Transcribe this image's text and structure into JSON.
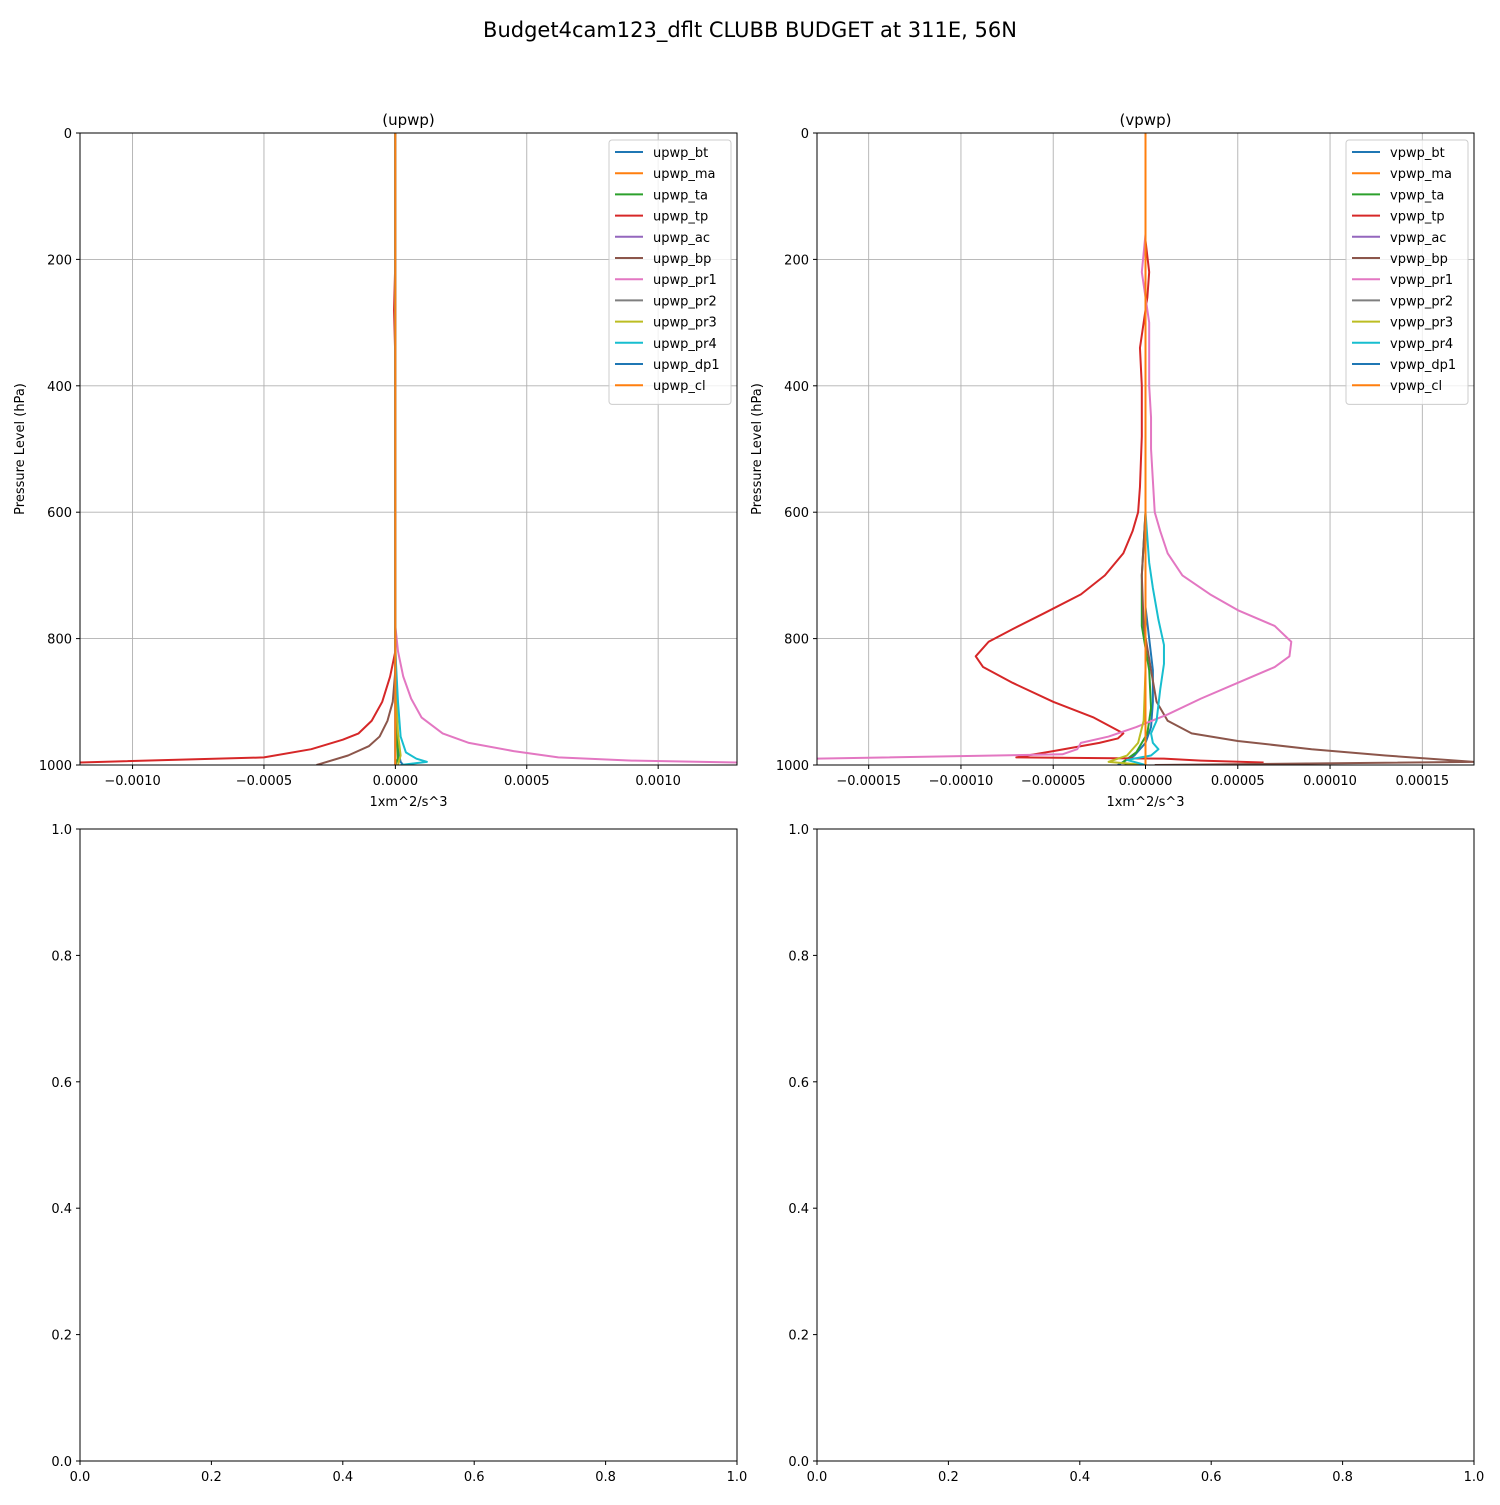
{
  "figure": {
    "title": "Budget4cam123_dflt CLUBB BUDGET at 311E, 56N"
  },
  "colors": {
    "c0": "#1f77b4",
    "c1": "#ff7f0e",
    "c2": "#2ca02c",
    "c3": "#d62728",
    "c4": "#9467bd",
    "c5": "#8c564b",
    "c6": "#e377c2",
    "c7": "#7f7f7f",
    "c8": "#bcbd22",
    "c9": "#17becf",
    "grid": "#b0b0b0"
  },
  "chart_data": [
    {
      "type": "line",
      "title": "(upwp)",
      "xlabel": "1xm^2/s^3",
      "ylabel": "Pressure Level (hPa)",
      "xlim": [
        -0.0012,
        0.0013
      ],
      "ylim": [
        0,
        1000
      ],
      "y_inverted": true,
      "grid": true,
      "legend": "upper right",
      "x_ticks": [
        -0.001,
        -0.0005,
        0.0,
        0.0005,
        0.001
      ],
      "x_tick_labels": [
        "−0.0010",
        "−0.0005",
        "0.0000",
        "0.0005",
        "0.0010"
      ],
      "y_ticks": [
        0,
        200,
        400,
        600,
        800,
        1000
      ],
      "y_tick_labels": [
        "0",
        "200",
        "400",
        "600",
        "800",
        "1000"
      ],
      "series": [
        {
          "name": "upwp_bt",
          "color": "#1f77b4",
          "points": [
            [
              0,
              0
            ],
            [
              0,
              600
            ],
            [
              0,
              800
            ],
            [
              0,
              900
            ],
            [
              5e-06,
              950
            ],
            [
              1e-05,
              975
            ],
            [
              2e-05,
              995
            ],
            [
              3e-05,
              1000
            ]
          ]
        },
        {
          "name": "upwp_ma",
          "color": "#ff7f0e",
          "points": [
            [
              0,
              0
            ],
            [
              0,
              1000
            ]
          ]
        },
        {
          "name": "upwp_ta",
          "color": "#2ca02c",
          "points": [
            [
              0,
              0
            ],
            [
              0,
              800
            ],
            [
              5e-06,
              930
            ],
            [
              1e-05,
              990
            ],
            [
              0,
              1000
            ]
          ]
        },
        {
          "name": "upwp_tp",
          "color": "#d62728",
          "points": [
            [
              0,
              0
            ],
            [
              0,
              200
            ],
            [
              -5e-06,
              280
            ],
            [
              0,
              360
            ],
            [
              0,
              820
            ],
            [
              -2e-05,
              860
            ],
            [
              -5e-05,
              900
            ],
            [
              -9e-05,
              930
            ],
            [
              -0.00014,
              950
            ],
            [
              -0.0002,
              960
            ],
            [
              -0.00032,
              975
            ],
            [
              -0.0005,
              988
            ],
            [
              -0.0012,
              996
            ]
          ]
        },
        {
          "name": "upwp_ac",
          "color": "#9467bd",
          "points": [
            [
              0,
              0
            ],
            [
              0,
              1000
            ]
          ]
        },
        {
          "name": "upwp_bp",
          "color": "#8c564b",
          "points": [
            [
              0,
              0
            ],
            [
              0,
              850
            ],
            [
              -1e-05,
              900
            ],
            [
              -3e-05,
              930
            ],
            [
              -6e-05,
              955
            ],
            [
              -0.0001,
              970
            ],
            [
              -0.00018,
              985
            ],
            [
              -0.0003,
              1000
            ]
          ]
        },
        {
          "name": "upwp_pr1",
          "color": "#e377c2",
          "points": [
            [
              0,
              0
            ],
            [
              0,
              780
            ],
            [
              1e-05,
              820
            ],
            [
              3e-05,
              860
            ],
            [
              6e-05,
              895
            ],
            [
              0.0001,
              925
            ],
            [
              0.00018,
              950
            ],
            [
              0.00028,
              965
            ],
            [
              0.00045,
              978
            ],
            [
              0.00062,
              988
            ],
            [
              0.0009,
              993
            ],
            [
              0.0013,
              996
            ]
          ]
        },
        {
          "name": "upwp_pr2",
          "color": "#7f7f7f",
          "points": [
            [
              0,
              0
            ],
            [
              0,
              1000
            ]
          ]
        },
        {
          "name": "upwp_pr3",
          "color": "#bcbd22",
          "points": [
            [
              0,
              0
            ],
            [
              0,
              850
            ],
            [
              1e-05,
              950
            ],
            [
              2e-05,
              985
            ],
            [
              1e-05,
              1000
            ]
          ]
        },
        {
          "name": "upwp_pr4",
          "color": "#17becf",
          "points": [
            [
              0,
              0
            ],
            [
              0,
              820
            ],
            [
              1e-05,
              900
            ],
            [
              2e-05,
              955
            ],
            [
              4e-05,
              980
            ],
            [
              8e-05,
              990
            ],
            [
              0.00012,
              995
            ],
            [
              2e-05,
              1000
            ]
          ]
        },
        {
          "name": "upwp_dp1",
          "color": "#1f77b4",
          "points": [
            [
              0,
              0
            ],
            [
              0,
              1000
            ]
          ]
        },
        {
          "name": "upwp_cl",
          "color": "#ff7f0e",
          "points": [
            [
              0,
              0
            ],
            [
              0,
              1000
            ]
          ]
        }
      ]
    },
    {
      "type": "line",
      "title": "(vpwp)",
      "xlabel": "1xm^2/s^3",
      "ylabel": "Pressure Level (hPa)",
      "xlim": [
        -0.000178,
        0.000178
      ],
      "ylim": [
        0,
        1000
      ],
      "y_inverted": true,
      "grid": true,
      "legend": "upper right",
      "x_ticks": [
        -0.00015,
        -0.0001,
        -5e-05,
        0.0,
        5e-05,
        0.0001,
        0.00015
      ],
      "x_tick_labels": [
        "−0.00015",
        "−0.00010",
        "−0.00005",
        "0.00000",
        "0.00005",
        "0.00010",
        "0.00015"
      ],
      "y_ticks": [
        0,
        200,
        400,
        600,
        800,
        1000
      ],
      "y_tick_labels": [
        "0",
        "200",
        "400",
        "600",
        "800",
        "1000"
      ],
      "series": [
        {
          "name": "vpwp_bt",
          "color": "#1f77b4",
          "points": [
            [
              0,
              0
            ],
            [
              0,
              600
            ],
            [
              0,
              750
            ],
            [
              2e-06,
              800
            ],
            [
              4e-06,
              850
            ],
            [
              4e-06,
              900
            ],
            [
              3e-06,
              940
            ],
            [
              0,
              965
            ],
            [
              -6e-06,
              985
            ],
            [
              -1.2e-05,
              995
            ],
            [
              -1.5e-05,
              1000
            ]
          ]
        },
        {
          "name": "vpwp_ma",
          "color": "#ff7f0e",
          "points": [
            [
              0,
              0
            ],
            [
              0,
              1000
            ]
          ]
        },
        {
          "name": "vpwp_ta",
          "color": "#2ca02c",
          "points": [
            [
              0,
              0
            ],
            [
              0,
              600
            ],
            [
              -2e-06,
              700
            ],
            [
              -2e-06,
              780
            ],
            [
              2e-06,
              850
            ],
            [
              3e-06,
              910
            ],
            [
              1e-06,
              950
            ],
            [
              -5e-06,
              980
            ],
            [
              -1.2e-05,
              995
            ],
            [
              -1e-05,
              1000
            ]
          ]
        },
        {
          "name": "vpwp_tp",
          "color": "#d62728",
          "points": [
            [
              0,
              0
            ],
            [
              0,
              170
            ],
            [
              2e-06,
              220
            ],
            [
              1e-06,
              260
            ],
            [
              -1e-06,
              300
            ],
            [
              -3e-06,
              340
            ],
            [
              -2e-06,
              400
            ],
            [
              -2e-06,
              480
            ],
            [
              -3e-06,
              560
            ],
            [
              -4e-06,
              600
            ],
            [
              -7e-06,
              630
            ],
            [
              -1.2e-05,
              665
            ],
            [
              -2.2e-05,
              700
            ],
            [
              -3.5e-05,
              730
            ],
            [
              -5.5e-05,
              760
            ],
            [
              -7.2e-05,
              785
            ],
            [
              -8.5e-05,
              805
            ],
            [
              -9.2e-05,
              828
            ],
            [
              -8.8e-05,
              845
            ],
            [
              -7.2e-05,
              870
            ],
            [
              -5e-05,
              900
            ],
            [
              -2.8e-05,
              925
            ],
            [
              -1.2e-05,
              950
            ],
            [
              -1.5e-05,
              958
            ],
            [
              -2.5e-05,
              965
            ],
            [
              -5e-05,
              978
            ],
            [
              -7e-05,
              988
            ],
            [
              1e-05,
              990
            ],
            [
              3e-05,
              993
            ],
            [
              6.4e-05,
              996
            ]
          ]
        },
        {
          "name": "vpwp_ac",
          "color": "#9467bd",
          "points": [
            [
              0,
              0
            ],
            [
              0,
              1000
            ]
          ]
        },
        {
          "name": "vpwp_bp",
          "color": "#8c564b",
          "points": [
            [
              0,
              0
            ],
            [
              0,
              600
            ],
            [
              -2e-06,
              700
            ],
            [
              -1e-06,
              780
            ],
            [
              3e-06,
              850
            ],
            [
              6e-06,
              900
            ],
            [
              1.2e-05,
              930
            ],
            [
              2.5e-05,
              950
            ],
            [
              5e-05,
              962
            ],
            [
              9e-05,
              975
            ],
            [
              0.00013,
              985
            ],
            [
              0.000178,
              995
            ],
            [
              5e-06,
              1000
            ]
          ]
        },
        {
          "name": "vpwp_pr1",
          "color": "#e377c2",
          "points": [
            [
              0,
              0
            ],
            [
              0,
              160
            ],
            [
              -2e-06,
              220
            ],
            [
              0,
              260
            ],
            [
              2e-06,
              300
            ],
            [
              2e-06,
              350
            ],
            [
              2e-06,
              400
            ],
            [
              3e-06,
              450
            ],
            [
              3e-06,
              500
            ],
            [
              4e-06,
              550
            ],
            [
              5e-06,
              600
            ],
            [
              8e-06,
              630
            ],
            [
              1.2e-05,
              665
            ],
            [
              2e-05,
              700
            ],
            [
              3.5e-05,
              730
            ],
            [
              5e-05,
              755
            ],
            [
              7e-05,
              780
            ],
            [
              7.9e-05,
              805
            ],
            [
              7.8e-05,
              828
            ],
            [
              7e-05,
              845
            ],
            [
              5e-05,
              870
            ],
            [
              3e-05,
              895
            ],
            [
              1.2e-05,
              920
            ],
            [
              -5e-06,
              940
            ],
            [
              -2e-05,
              955
            ],
            [
              -3.5e-05,
              965
            ],
            [
              -3.7e-05,
              975
            ],
            [
              -4.5e-05,
              983
            ],
            [
              -0.000178,
              990
            ]
          ]
        },
        {
          "name": "vpwp_pr2",
          "color": "#7f7f7f",
          "points": [
            [
              0,
              0
            ],
            [
              0,
              1000
            ]
          ]
        },
        {
          "name": "vpwp_pr3",
          "color": "#bcbd22",
          "points": [
            [
              0,
              0
            ],
            [
              0,
              850
            ],
            [
              -1e-06,
              930
            ],
            [
              -4e-06,
              965
            ],
            [
              -1e-05,
              985
            ],
            [
              -2e-05,
              995
            ],
            [
              0,
              1000
            ]
          ]
        },
        {
          "name": "vpwp_pr4",
          "color": "#17becf",
          "points": [
            [
              0,
              0
            ],
            [
              0,
              600
            ],
            [
              2e-06,
              680
            ],
            [
              4e-06,
              720
            ],
            [
              7e-06,
              770
            ],
            [
              1e-05,
              810
            ],
            [
              1e-05,
              840
            ],
            [
              8e-06,
              880
            ],
            [
              6e-06,
              930
            ],
            [
              3e-06,
              950
            ],
            [
              4e-06,
              965
            ],
            [
              7e-06,
              975
            ],
            [
              3e-06,
              985
            ],
            [
              -1e-05,
              992
            ],
            [
              0,
              1000
            ]
          ]
        },
        {
          "name": "vpwp_dp1",
          "color": "#1f77b4",
          "points": [
            [
              0,
              0
            ],
            [
              0,
              1000
            ]
          ]
        },
        {
          "name": "vpwp_cl",
          "color": "#ff7f0e",
          "points": [
            [
              0,
              0
            ],
            [
              0,
              1000
            ]
          ]
        }
      ]
    },
    {
      "type": "line",
      "xlim": [
        0,
        1
      ],
      "ylim": [
        0,
        1
      ],
      "grid": false,
      "x_ticks": [
        0,
        0.2,
        0.4,
        0.6,
        0.8,
        1.0
      ],
      "x_tick_labels": [
        "0.0",
        "0.2",
        "0.4",
        "0.6",
        "0.8",
        "1.0"
      ],
      "y_ticks": [
        0,
        0.2,
        0.4,
        0.6,
        0.8,
        1.0
      ],
      "y_tick_labels": [
        "0.0",
        "0.2",
        "0.4",
        "0.6",
        "0.8",
        "1.0"
      ],
      "series": []
    },
    {
      "type": "line",
      "xlim": [
        0,
        1
      ],
      "ylim": [
        0,
        1
      ],
      "grid": false,
      "x_ticks": [
        0,
        0.2,
        0.4,
        0.6,
        0.8,
        1.0
      ],
      "x_tick_labels": [
        "0.0",
        "0.2",
        "0.4",
        "0.6",
        "0.8",
        "1.0"
      ],
      "y_ticks": [
        0,
        0.2,
        0.4,
        0.6,
        0.8,
        1.0
      ],
      "y_tick_labels": [
        "0.0",
        "0.2",
        "0.4",
        "0.6",
        "0.8",
        "1.0"
      ],
      "series": []
    }
  ]
}
